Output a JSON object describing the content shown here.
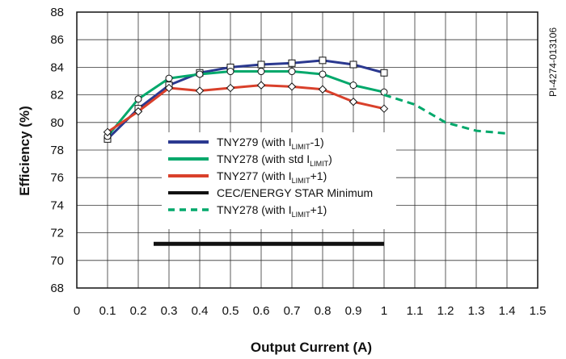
{
  "chart_data": {
    "type": "line",
    "xlabel": "Output Current (A)",
    "ylabel": "Efficiency (%)",
    "xlim": [
      0,
      1.5
    ],
    "ylim": [
      68,
      88
    ],
    "xticks": [
      "0",
      "0.1",
      "0.2",
      "0.3",
      "0.4",
      "0.5",
      "0.6",
      "0.7",
      "0.8",
      "0.9",
      "1",
      "1.1",
      "1.2",
      "1.3",
      "1.4",
      "1.5"
    ],
    "yticks": [
      "68",
      "70",
      "72",
      "74",
      "76",
      "78",
      "80",
      "82",
      "84",
      "86",
      "88"
    ],
    "grid": true,
    "legend_position": "center-left",
    "side_label": "PI-4274-013106",
    "series": [
      {
        "legend": [
          "TNY279 (with I",
          "LIMIT",
          "-1)"
        ],
        "color": "#2b3990",
        "style": "solid",
        "marker": "square",
        "x": [
          0.1,
          0.2,
          0.3,
          0.4,
          0.5,
          0.6,
          0.7,
          0.8,
          0.9,
          1.0
        ],
        "y": [
          78.8,
          81.0,
          82.7,
          83.6,
          84.0,
          84.2,
          84.3,
          84.5,
          84.2,
          83.6
        ]
      },
      {
        "legend": [
          "TNY278 (with std I",
          "LIMIT",
          ")"
        ],
        "color": "#00a86b",
        "style": "solid",
        "marker": "circle",
        "x": [
          0.1,
          0.2,
          0.3,
          0.4,
          0.5,
          0.6,
          0.7,
          0.8,
          0.9,
          1.0
        ],
        "y": [
          79.0,
          81.7,
          83.2,
          83.5,
          83.7,
          83.7,
          83.7,
          83.5,
          82.7,
          82.2
        ]
      },
      {
        "legend": [
          "TNY277 (with I",
          "LIMIT",
          "+1)"
        ],
        "color": "#d9402b",
        "style": "solid",
        "marker": "diamond",
        "x": [
          0.1,
          0.2,
          0.3,
          0.4,
          0.5,
          0.6,
          0.7,
          0.8,
          0.9,
          1.0
        ],
        "y": [
          79.3,
          80.8,
          82.5,
          82.3,
          82.5,
          82.7,
          82.6,
          82.4,
          81.5,
          81.0
        ]
      },
      {
        "legend": [
          "CEC/ENERGY STAR Minimum",
          "",
          ""
        ],
        "color": "#111111",
        "style": "thick",
        "marker": "none",
        "x": [
          0.25,
          1.0
        ],
        "y": [
          71.2,
          71.2
        ]
      },
      {
        "legend": [
          "TNY278 (with I",
          "LIMIT",
          "+1)"
        ],
        "color": "#00a86b",
        "style": "dashed",
        "marker": "none",
        "x": [
          1.0,
          1.1,
          1.2,
          1.3,
          1.4
        ],
        "y": [
          82.0,
          81.3,
          80.0,
          79.4,
          79.2
        ]
      }
    ]
  }
}
